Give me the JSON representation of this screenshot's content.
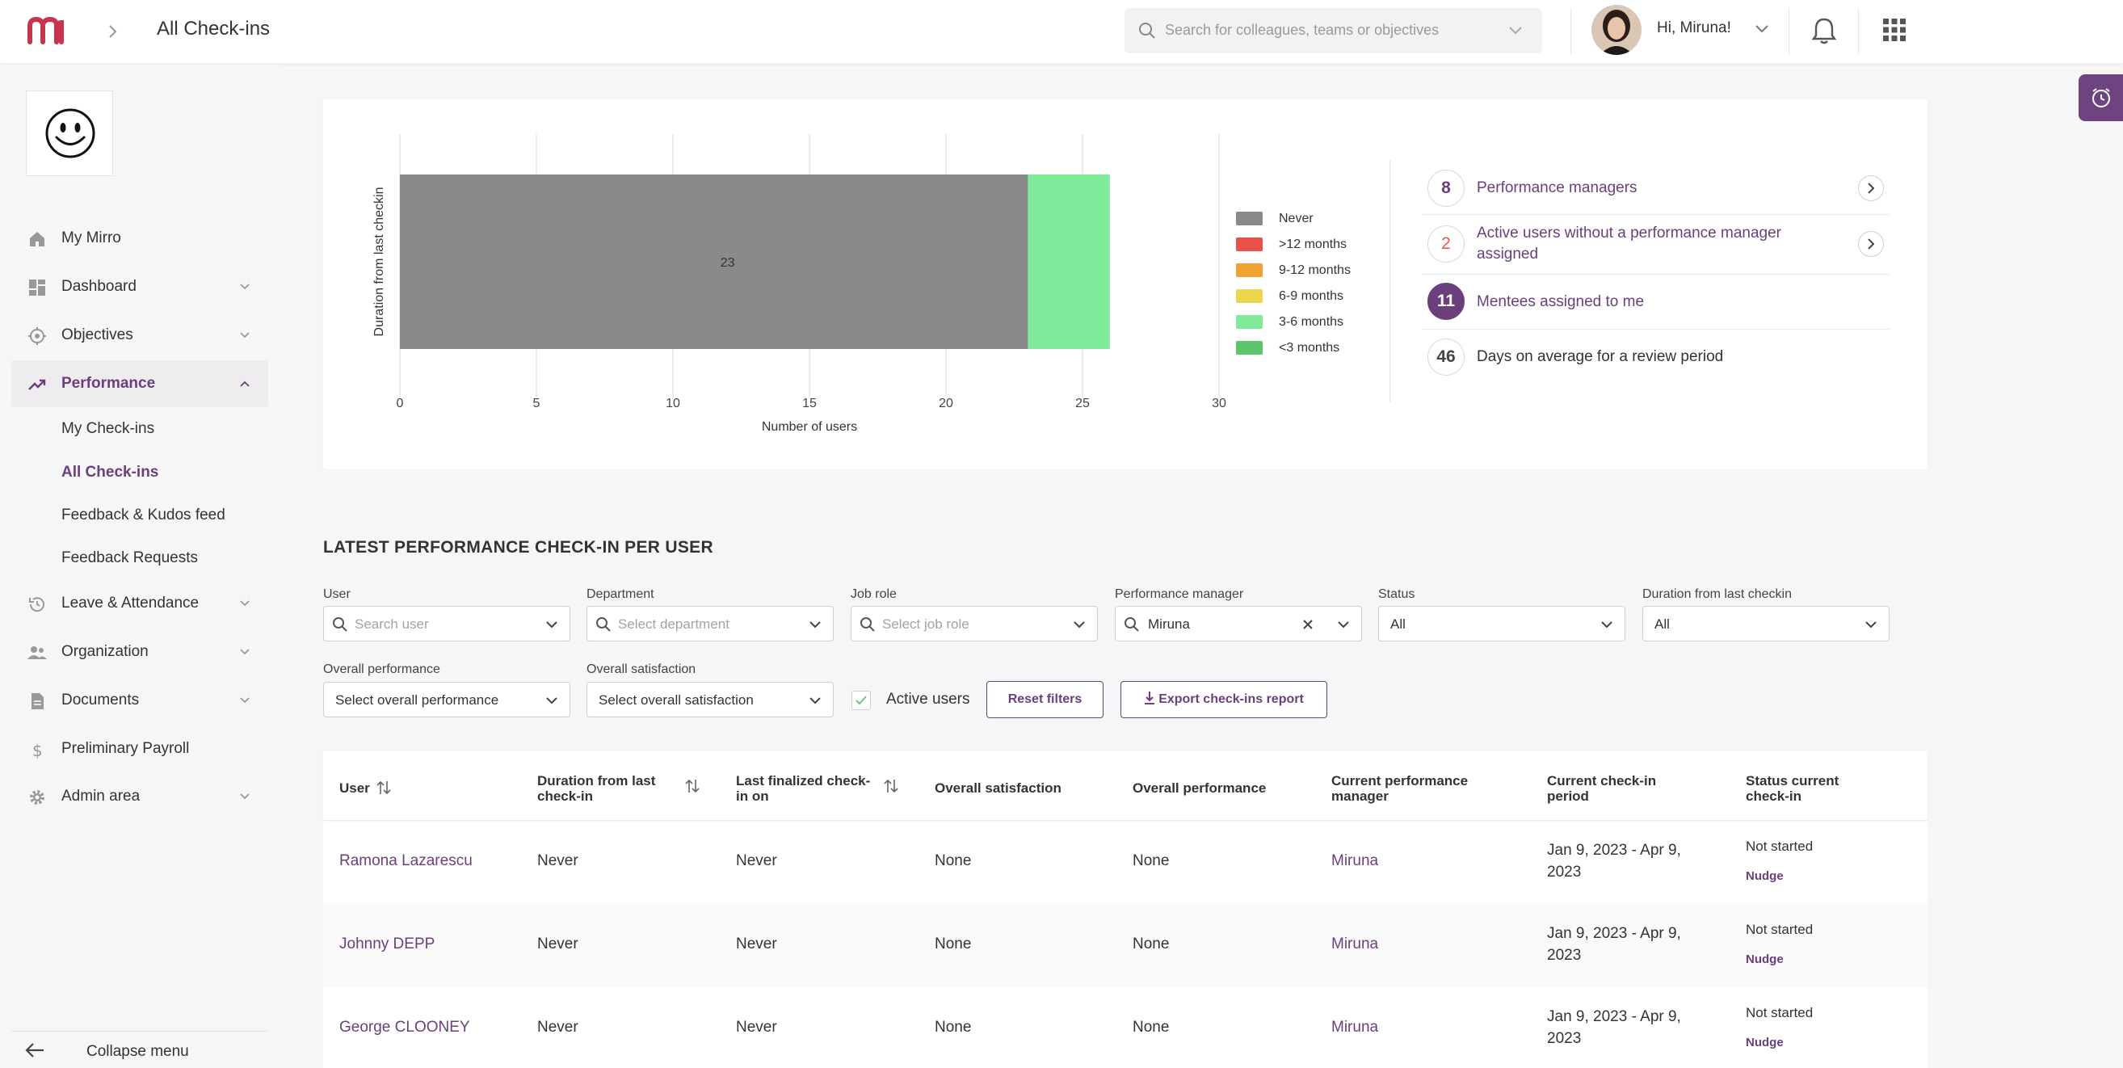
{
  "header": {
    "page_title": "All Check-ins",
    "search_placeholder": "Search for colleagues, teams or objectives",
    "greeting": "Hi, Miruna!"
  },
  "colors": {
    "brand": "#6b3f7c",
    "logo": "#c8344e"
  },
  "sidebar": {
    "items": [
      {
        "label": "My Mirro",
        "icon": "home-icon"
      },
      {
        "label": "Dashboard",
        "icon": "dashboard-icon"
      },
      {
        "label": "Objectives",
        "icon": "target-icon"
      },
      {
        "label": "Performance",
        "icon": "trending-icon"
      },
      {
        "label": "Leave & Attendance",
        "icon": "history-icon"
      },
      {
        "label": "Organization",
        "icon": "people-icon"
      },
      {
        "label": "Documents",
        "icon": "document-icon"
      },
      {
        "label": "Preliminary Payroll",
        "icon": "dollar-icon"
      },
      {
        "label": "Admin area",
        "icon": "gear-icon"
      }
    ],
    "performance_sub": [
      "My Check-ins",
      "All Check-ins",
      "Feedback & Kudos feed",
      "Feedback Requests"
    ],
    "collapse_label": "Collapse menu"
  },
  "chart_data": {
    "type": "bar",
    "orientation": "horizontal",
    "stacked": true,
    "ylabel": "Duration from last checkin",
    "xlabel": "Number of users",
    "xlim": [
      0,
      30
    ],
    "xticks": [
      0,
      5,
      10,
      15,
      20,
      25,
      30
    ],
    "grid": true,
    "legend_position": "right",
    "series": [
      {
        "name": "Never",
        "value": 23,
        "color": "#8a8a8a"
      },
      {
        "name": ">12 months",
        "value": 0,
        "color": "#e8524a"
      },
      {
        "name": "9-12 months",
        "value": 0,
        "color": "#f0a232"
      },
      {
        "name": "6-9 months",
        "value": 0,
        "color": "#ecd64d"
      },
      {
        "name": "3-6 months",
        "value": 3,
        "color": "#7eea9a"
      },
      {
        "name": "<3 months",
        "value": 0,
        "color": "#5cc66f"
      }
    ],
    "data_labels": [
      "23"
    ]
  },
  "stats": [
    {
      "value": "8",
      "label": "Performance managers"
    },
    {
      "value": "2",
      "label": "Active users without a performance manager assigned"
    },
    {
      "value": "11",
      "label": "Mentees assigned to me"
    },
    {
      "value": "46",
      "label": "Days on average for a review period"
    }
  ],
  "section_title": "LATEST PERFORMANCE CHECK-IN PER USER",
  "filters": {
    "user": {
      "label": "User",
      "placeholder": "Search user"
    },
    "department": {
      "label": "Department",
      "placeholder": "Select department"
    },
    "job_role": {
      "label": "Job role",
      "placeholder": "Select job role"
    },
    "perf_manager": {
      "label": "Performance manager",
      "value": "Miruna"
    },
    "status": {
      "label": "Status",
      "value": "All"
    },
    "duration": {
      "label": "Duration from last checkin",
      "value": "All"
    },
    "overall_performance": {
      "label": "Overall performance",
      "value": "Select overall performance"
    },
    "overall_satisfaction": {
      "label": "Overall satisfaction",
      "value": "Select overall satisfaction"
    },
    "active_users_label": "Active users",
    "reset_label": "Reset filters",
    "export_label": "Export check-ins report"
  },
  "table": {
    "columns": [
      "User",
      "Duration from last check-in",
      "Last finalized check-in on",
      "Overall satisfaction",
      "Overall performance",
      "Current performance manager",
      "Current check-in period",
      "Status current check-in"
    ],
    "rows": [
      {
        "user": "Ramona Lazarescu",
        "duration": "Never",
        "last": "Never",
        "satisfaction": "None",
        "performance": "None",
        "manager": "Miruna",
        "period": "Jan 9, 2023 - Apr 9, 2023",
        "status": "Not started",
        "action": "Nudge"
      },
      {
        "user": "Johnny DEPP",
        "duration": "Never",
        "last": "Never",
        "satisfaction": "None",
        "performance": "None",
        "manager": "Miruna",
        "period": "Jan 9, 2023 - Apr 9, 2023",
        "status": "Not started",
        "action": "Nudge"
      },
      {
        "user": "George CLOONEY",
        "duration": "Never",
        "last": "Never",
        "satisfaction": "None",
        "performance": "None",
        "manager": "Miruna",
        "period": "Jan 9, 2023 - Apr 9, 2023",
        "status": "Not started",
        "action": "Nudge"
      }
    ]
  }
}
